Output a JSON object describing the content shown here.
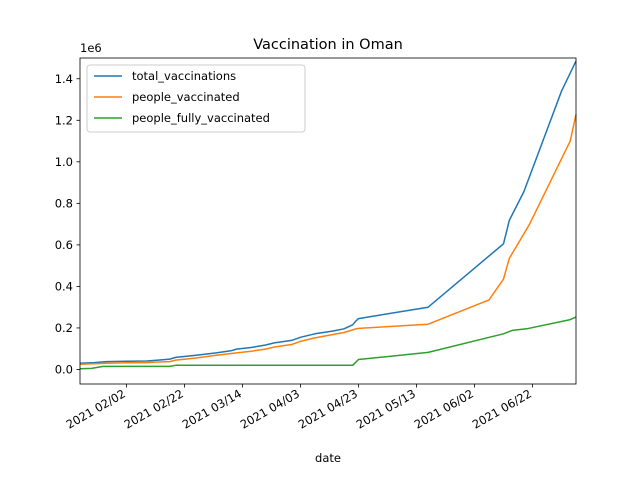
{
  "chart_data": {
    "type": "line",
    "title": "Vaccination in Oman",
    "xlabel": "date",
    "ylabel": "",
    "y_offset_label": "1e6",
    "x_tick_labels": [
      "2021 02/02",
      "2021 02/22",
      "2021 03/14",
      "2021 04/03",
      "2021 04/23",
      "2021 05/13",
      "2021 06/02",
      "2021 06/22"
    ],
    "x_tick_dates": [
      "2021-02-02",
      "2021-02-22",
      "2021-03-14",
      "2021-04-03",
      "2021-04-23",
      "2021-05-13",
      "2021-06-02",
      "2021-06-22"
    ],
    "xlim": [
      "2021-01-17",
      "2021-07-07"
    ],
    "y_ticks": [
      0.0,
      0.2,
      0.4,
      0.6,
      0.8,
      1.0,
      1.2,
      1.4
    ],
    "y_tick_labels": [
      "0.0",
      "0.2",
      "0.4",
      "0.6",
      "0.8",
      "1.0",
      "1.2",
      "1.4"
    ],
    "ylim": [
      -0.07,
      1.5
    ],
    "y_unit_multiplier": 1000000,
    "grid": false,
    "legend_position": "top-left",
    "series": [
      {
        "name": "total_vaccinations",
        "color": "#1f77b4",
        "points": [
          [
            "2021-01-17",
            0.03
          ],
          [
            "2021-01-22",
            0.033
          ],
          [
            "2021-01-26",
            0.038
          ],
          [
            "2021-02-02",
            0.04
          ],
          [
            "2021-02-09",
            0.041
          ],
          [
            "2021-02-13",
            0.045
          ],
          [
            "2021-02-17",
            0.05
          ],
          [
            "2021-02-19",
            0.058
          ],
          [
            "2021-02-26",
            0.068
          ],
          [
            "2021-03-05",
            0.08
          ],
          [
            "2021-03-10",
            0.09
          ],
          [
            "2021-03-12",
            0.098
          ],
          [
            "2021-03-17",
            0.106
          ],
          [
            "2021-03-22",
            0.118
          ],
          [
            "2021-03-25",
            0.128
          ],
          [
            "2021-03-31",
            0.14
          ],
          [
            "2021-04-03",
            0.155
          ],
          [
            "2021-04-08",
            0.172
          ],
          [
            "2021-04-14",
            0.185
          ],
          [
            "2021-04-18",
            0.196
          ],
          [
            "2021-04-21",
            0.215
          ],
          [
            "2021-04-22",
            0.232
          ],
          [
            "2021-04-23",
            0.245
          ],
          [
            "2021-05-17",
            0.3
          ],
          [
            "2021-06-12",
            0.605
          ],
          [
            "2021-06-14",
            0.718
          ],
          [
            "2021-06-19",
            0.855
          ],
          [
            "2021-07-02",
            1.34
          ],
          [
            "2021-07-07",
            1.485
          ]
        ]
      },
      {
        "name": "people_vaccinated",
        "color": "#ff7f0e",
        "points": [
          [
            "2021-01-17",
            0.025
          ],
          [
            "2021-01-22",
            0.028
          ],
          [
            "2021-01-26",
            0.03
          ],
          [
            "2021-02-02",
            0.032
          ],
          [
            "2021-02-09",
            0.033
          ],
          [
            "2021-02-13",
            0.036
          ],
          [
            "2021-02-17",
            0.038
          ],
          [
            "2021-02-19",
            0.045
          ],
          [
            "2021-02-26",
            0.055
          ],
          [
            "2021-03-05",
            0.068
          ],
          [
            "2021-03-12",
            0.08
          ],
          [
            "2021-03-17",
            0.088
          ],
          [
            "2021-03-22",
            0.098
          ],
          [
            "2021-03-25",
            0.108
          ],
          [
            "2021-03-31",
            0.12
          ],
          [
            "2021-04-03",
            0.135
          ],
          [
            "2021-04-08",
            0.152
          ],
          [
            "2021-04-14",
            0.168
          ],
          [
            "2021-04-18",
            0.178
          ],
          [
            "2021-04-22",
            0.195
          ],
          [
            "2021-04-23",
            0.198
          ],
          [
            "2021-05-17",
            0.218
          ],
          [
            "2021-06-07",
            0.335
          ],
          [
            "2021-06-12",
            0.435
          ],
          [
            "2021-06-14",
            0.535
          ],
          [
            "2021-06-21",
            0.7
          ],
          [
            "2021-07-05",
            1.1
          ],
          [
            "2021-07-07",
            1.228
          ]
        ]
      },
      {
        "name": "people_fully_vaccinated",
        "color": "#2ca02c",
        "points": [
          [
            "2021-01-17",
            0.003
          ],
          [
            "2021-01-21",
            0.005
          ],
          [
            "2021-01-25",
            0.015
          ],
          [
            "2021-02-02",
            0.015
          ],
          [
            "2021-02-09",
            0.015
          ],
          [
            "2021-02-13",
            0.015
          ],
          [
            "2021-02-17",
            0.015
          ],
          [
            "2021-02-19",
            0.02
          ],
          [
            "2021-03-12",
            0.02
          ],
          [
            "2021-04-03",
            0.02
          ],
          [
            "2021-04-21",
            0.02
          ],
          [
            "2021-04-23",
            0.048
          ],
          [
            "2021-05-17",
            0.082
          ],
          [
            "2021-06-12",
            0.172
          ],
          [
            "2021-06-15",
            0.188
          ],
          [
            "2021-06-20",
            0.196
          ],
          [
            "2021-07-05",
            0.24
          ],
          [
            "2021-07-07",
            0.252
          ]
        ]
      }
    ]
  }
}
